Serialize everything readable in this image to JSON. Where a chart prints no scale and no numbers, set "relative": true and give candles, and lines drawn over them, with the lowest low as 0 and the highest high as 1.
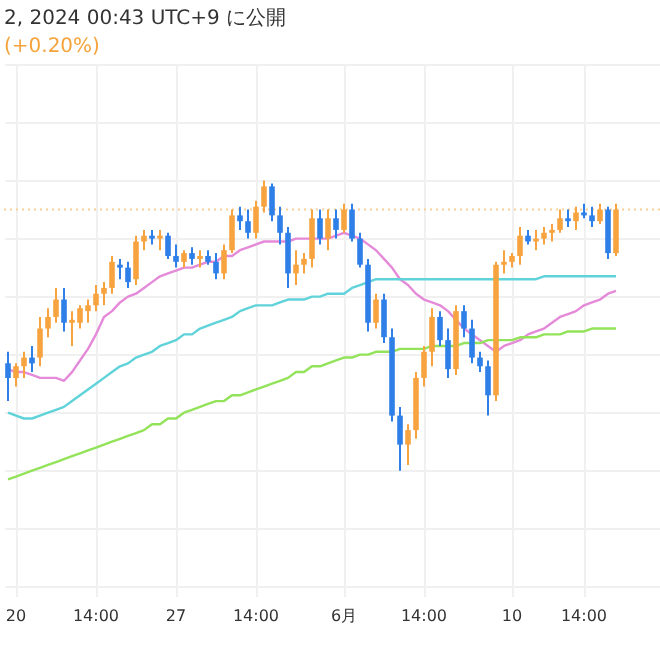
{
  "chart_data": {
    "type": "candlestick",
    "title": "2, 2024 00:43 UTC+9 に公開",
    "subtitle": "(+0.20%)",
    "relative": true,
    "grid": true,
    "categories": [
      null,
      "20",
      null,
      null,
      null,
      null,
      null,
      null,
      null,
      null,
      null,
      "14:00",
      null,
      null,
      null,
      null,
      null,
      null,
      null,
      null,
      null,
      "27",
      null,
      null,
      null,
      null,
      null,
      null,
      null,
      null,
      null,
      "14:00",
      null,
      null,
      null,
      null,
      null,
      null,
      null,
      null,
      null,
      null,
      "6月",
      null,
      null,
      null,
      null,
      null,
      null,
      null,
      null,
      null,
      "14:00",
      null,
      null,
      null,
      null,
      null,
      null,
      null,
      null,
      null,
      null,
      "10",
      null,
      null,
      null,
      null,
      null,
      null,
      null,
      null,
      "14:00",
      null,
      null,
      null,
      null,
      null,
      null,
      null,
      null,
      null
    ],
    "ohlc": [
      [
        0.37,
        0.41,
        0.24,
        0.32
      ],
      [
        0.32,
        0.37,
        0.29,
        0.36
      ],
      [
        0.36,
        0.41,
        0.32,
        0.39
      ],
      [
        0.39,
        0.43,
        0.34,
        0.37
      ],
      [
        0.39,
        0.53,
        0.36,
        0.49
      ],
      [
        0.49,
        0.56,
        0.46,
        0.53
      ],
      [
        0.53,
        0.63,
        0.51,
        0.59
      ],
      [
        0.59,
        0.63,
        0.48,
        0.51
      ],
      [
        0.51,
        0.55,
        0.43,
        0.52
      ],
      [
        0.51,
        0.57,
        0.49,
        0.56
      ],
      [
        0.55,
        0.59,
        0.51,
        0.57
      ],
      [
        0.57,
        0.64,
        0.55,
        0.61
      ],
      [
        0.61,
        0.65,
        0.57,
        0.63
      ],
      [
        0.63,
        0.74,
        0.61,
        0.72
      ],
      [
        0.71,
        0.73,
        0.66,
        0.7
      ],
      [
        0.7,
        0.72,
        0.63,
        0.65
      ],
      [
        0.66,
        0.81,
        0.64,
        0.79
      ],
      [
        0.79,
        0.83,
        0.76,
        0.81
      ],
      [
        0.81,
        0.83,
        0.78,
        0.8
      ],
      [
        0.8,
        0.83,
        0.76,
        0.81
      ],
      [
        0.81,
        0.82,
        0.73,
        0.74
      ],
      [
        0.74,
        0.78,
        0.7,
        0.72
      ],
      [
        0.72,
        0.76,
        0.7,
        0.75
      ],
      [
        0.75,
        0.77,
        0.71,
        0.73
      ],
      [
        0.73,
        0.76,
        0.7,
        0.74
      ],
      [
        0.74,
        0.76,
        0.71,
        0.72
      ],
      [
        0.72,
        0.75,
        0.66,
        0.68
      ],
      [
        0.68,
        0.78,
        0.66,
        0.76
      ],
      [
        0.76,
        0.9,
        0.75,
        0.88
      ],
      [
        0.88,
        0.91,
        0.83,
        0.86
      ],
      [
        0.86,
        0.9,
        0.8,
        0.82
      ],
      [
        0.82,
        0.93,
        0.8,
        0.91
      ],
      [
        0.91,
        1.0,
        0.89,
        0.98
      ],
      [
        0.98,
        0.99,
        0.86,
        0.88
      ],
      [
        0.88,
        0.91,
        0.78,
        0.82
      ],
      [
        0.82,
        0.84,
        0.63,
        0.68
      ],
      [
        0.68,
        0.76,
        0.64,
        0.71
      ],
      [
        0.71,
        0.75,
        0.68,
        0.73
      ],
      [
        0.73,
        0.9,
        0.7,
        0.87
      ],
      [
        0.87,
        0.9,
        0.78,
        0.8
      ],
      [
        0.8,
        0.9,
        0.76,
        0.87
      ],
      [
        0.87,
        0.9,
        0.8,
        0.83
      ],
      [
        0.83,
        0.92,
        0.82,
        0.9
      ],
      [
        0.9,
        0.92,
        0.79,
        0.8
      ],
      [
        0.8,
        0.82,
        0.7,
        0.71
      ],
      [
        0.71,
        0.73,
        0.48,
        0.51
      ],
      [
        0.51,
        0.61,
        0.49,
        0.59
      ],
      [
        0.59,
        0.61,
        0.44,
        0.46
      ],
      [
        0.46,
        0.49,
        0.17,
        0.19
      ],
      [
        0.19,
        0.22,
        0,
        0.09
      ],
      [
        0.09,
        0.16,
        0.02,
        0.14
      ],
      [
        0.14,
        0.34,
        0.11,
        0.32
      ],
      [
        0.32,
        0.43,
        0.29,
        0.41
      ],
      [
        0.41,
        0.56,
        0.36,
        0.53
      ],
      [
        0.53,
        0.55,
        0.43,
        0.45
      ],
      [
        0.45,
        0.49,
        0.32,
        0.35
      ],
      [
        0.35,
        0.57,
        0.33,
        0.55
      ],
      [
        0.55,
        0.57,
        0.46,
        0.49
      ],
      [
        0.49,
        0.52,
        0.37,
        0.39
      ],
      [
        0.39,
        0.41,
        0.34,
        0.36
      ],
      [
        0.36,
        0.38,
        0.19,
        0.26
      ],
      [
        0.26,
        0.72,
        0.24,
        0.71
      ],
      [
        0.71,
        0.76,
        0.68,
        0.72
      ],
      [
        0.72,
        0.75,
        0.7,
        0.74
      ],
      [
        0.74,
        0.84,
        0.71,
        0.81
      ],
      [
        0.81,
        0.83,
        0.78,
        0.79
      ],
      [
        0.79,
        0.83,
        0.76,
        0.8
      ],
      [
        0.8,
        0.84,
        0.78,
        0.82
      ],
      [
        0.82,
        0.85,
        0.79,
        0.83
      ],
      [
        0.83,
        0.9,
        0.82,
        0.87
      ],
      [
        0.87,
        0.9,
        0.84,
        0.86
      ],
      [
        0.86,
        0.91,
        0.83,
        0.89
      ],
      [
        0.89,
        0.92,
        0.87,
        0.88
      ],
      [
        0.88,
        0.91,
        0.84,
        0.86
      ],
      [
        0.86,
        0.92,
        0.85,
        0.9
      ],
      [
        0.9,
        0.91,
        0.73,
        0.75
      ],
      [
        0.75,
        0.92,
        0.74,
        0.9
      ],
      null,
      null,
      null,
      null,
      null
    ],
    "colors": [
      "#2f7fe8",
      "#f7a440",
      "#f7a440",
      "#2f7fe8",
      "#f7a440",
      "#f7a440",
      "#f7a440",
      "#2f7fe8",
      "#f7a440",
      "#f7a440",
      "#f7a440",
      "#f7a440",
      "#f7a440",
      "#f7a440",
      "#2f7fe8",
      "#2f7fe8",
      "#f7a440",
      "#f7a440",
      "#2f7fe8",
      "#f7a440",
      "#2f7fe8",
      "#2f7fe8",
      "#f7a440",
      "#2f7fe8",
      "#f7a440",
      "#2f7fe8",
      "#2f7fe8",
      "#f7a440",
      "#f7a440",
      "#2f7fe8",
      "#2f7fe8",
      "#f7a440",
      "#f7a440",
      "#2f7fe8",
      "#2f7fe8",
      "#2f7fe8",
      "#f7a440",
      "#f7a440",
      "#f7a440",
      "#2f7fe8",
      "#f7a440",
      "#2f7fe8",
      "#f7a440",
      "#2f7fe8",
      "#2f7fe8",
      "#2f7fe8",
      "#f7a440",
      "#2f7fe8",
      "#2f7fe8",
      "#2f7fe8",
      "#f7a440",
      "#f7a440",
      "#f7a440",
      "#f7a440",
      "#2f7fe8",
      "#2f7fe8",
      "#f7a440",
      "#2f7fe8",
      "#2f7fe8",
      "#2f7fe8",
      "#2f7fe8",
      "#f7a440",
      "#f7a440",
      "#f7a440",
      "#f7a440",
      "#2f7fe8",
      "#f7a440",
      "#f7a440",
      "#f7a440",
      "#f7a440",
      "#2f7fe8",
      "#f7a440",
      "#2f7fe8",
      "#2f7fe8",
      "#f7a440",
      "#2f7fe8",
      "#f7a440",
      null,
      null,
      null,
      null,
      null
    ],
    "ref_lines": [
      {
        "axis": "y",
        "value": 0.9,
        "color": "#f9cf94",
        "line_style": "dotted"
      }
    ],
    "series": [
      {
        "type": "line",
        "color": "#e58ad8",
        "values": [
          0.35,
          0.34,
          0.34,
          0.33,
          0.32,
          0.32,
          0.32,
          0.31,
          0.34,
          0.38,
          0.42,
          0.47,
          0.53,
          0.55,
          0.58,
          0.6,
          0.61,
          0.63,
          0.65,
          0.67,
          0.68,
          0.69,
          0.7,
          0.7,
          0.71,
          0.72,
          0.72,
          0.74,
          0.74,
          0.76,
          0.77,
          0.78,
          0.79,
          0.79,
          0.79,
          0.79,
          0.8,
          0.8,
          0.8,
          0.8,
          0.8,
          0.81,
          0.82,
          0.81,
          0.8,
          0.78,
          0.76,
          0.73,
          0.7,
          0.66,
          0.64,
          0.61,
          0.59,
          0.58,
          0.57,
          0.55,
          0.52,
          0.49,
          0.47,
          0.45,
          0.43,
          0.41,
          0.43,
          0.44,
          0.45,
          0.47,
          0.48,
          0.49,
          0.51,
          0.53,
          0.54,
          0.55,
          0.57,
          0.58,
          0.59,
          0.61,
          0.62,
          null,
          null,
          null,
          null,
          null
        ]
      },
      {
        "type": "line",
        "color": "#5fd3d9",
        "values": [
          0.2,
          0.19,
          0.18,
          0.18,
          0.19,
          0.2,
          0.21,
          0.22,
          0.24,
          0.26,
          0.28,
          0.3,
          0.32,
          0.34,
          0.36,
          0.37,
          0.39,
          0.4,
          0.41,
          0.43,
          0.44,
          0.45,
          0.47,
          0.47,
          0.49,
          0.5,
          0.51,
          0.52,
          0.53,
          0.55,
          0.56,
          0.57,
          0.57,
          0.57,
          0.58,
          0.59,
          0.59,
          0.59,
          0.6,
          0.6,
          0.61,
          0.61,
          0.61,
          0.63,
          0.64,
          0.65,
          0.66,
          0.66,
          0.66,
          0.66,
          0.66,
          0.66,
          0.66,
          0.66,
          0.66,
          0.66,
          0.66,
          0.66,
          0.66,
          0.66,
          0.66,
          0.66,
          0.66,
          0.66,
          0.66,
          0.66,
          0.66,
          0.67,
          0.67,
          0.67,
          0.67,
          0.67,
          0.67,
          0.67,
          0.67,
          0.67,
          0.67,
          null,
          null,
          null,
          null,
          null
        ]
      },
      {
        "type": "line",
        "color": "#93e35a",
        "values": [
          -0.03,
          -0.02,
          -0.01,
          0.0,
          0.01,
          0.02,
          0.03,
          0.04,
          0.05,
          0.06,
          0.07,
          0.08,
          0.09,
          0.1,
          0.11,
          0.12,
          0.13,
          0.14,
          0.16,
          0.16,
          0.18,
          0.18,
          0.2,
          0.21,
          0.22,
          0.23,
          0.24,
          0.24,
          0.26,
          0.26,
          0.27,
          0.28,
          0.29,
          0.3,
          0.31,
          0.32,
          0.34,
          0.34,
          0.36,
          0.36,
          0.37,
          0.38,
          0.39,
          0.39,
          0.4,
          0.4,
          0.41,
          0.41,
          0.41,
          0.42,
          0.42,
          0.42,
          0.42,
          0.43,
          0.43,
          0.43,
          0.43,
          0.44,
          0.44,
          0.44,
          0.45,
          0.45,
          0.45,
          0.45,
          0.46,
          0.46,
          0.46,
          0.47,
          0.47,
          0.47,
          0.48,
          0.48,
          0.48,
          0.49,
          0.49,
          0.49,
          0.49,
          null,
          null,
          null,
          null,
          null
        ]
      }
    ]
  }
}
